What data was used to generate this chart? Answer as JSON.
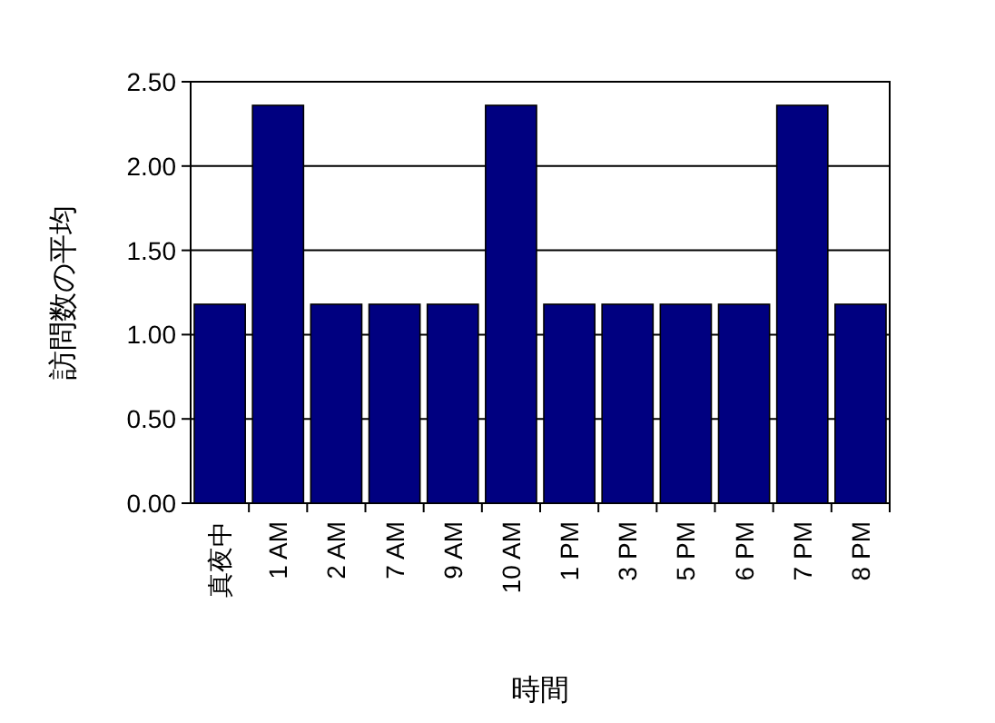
{
  "chart_data": {
    "type": "bar",
    "xlabel": "時間",
    "ylabel": "訪問数の平均",
    "categories": [
      "真夜中",
      "1 AM",
      "2 AM",
      "7 AM",
      "9 AM",
      "10 AM",
      "1 PM",
      "3 PM",
      "5 PM",
      "6 PM",
      "7 PM",
      "8 PM"
    ],
    "values": [
      1.18,
      2.36,
      1.18,
      1.18,
      1.18,
      2.36,
      1.18,
      1.18,
      1.18,
      1.18,
      2.36,
      1.18
    ],
    "color": "#000080",
    "ylim": [
      0,
      2.5
    ],
    "yticks": [
      {
        "value": 0,
        "label": "0.00"
      },
      {
        "value": 0.5,
        "label": "0.50"
      },
      {
        "value": 1,
        "label": "1.00"
      },
      {
        "value": 1.5,
        "label": "1.50"
      },
      {
        "value": 2,
        "label": "2.00"
      },
      {
        "value": 2.5,
        "label": "2.50"
      }
    ],
    "grid": "y"
  }
}
